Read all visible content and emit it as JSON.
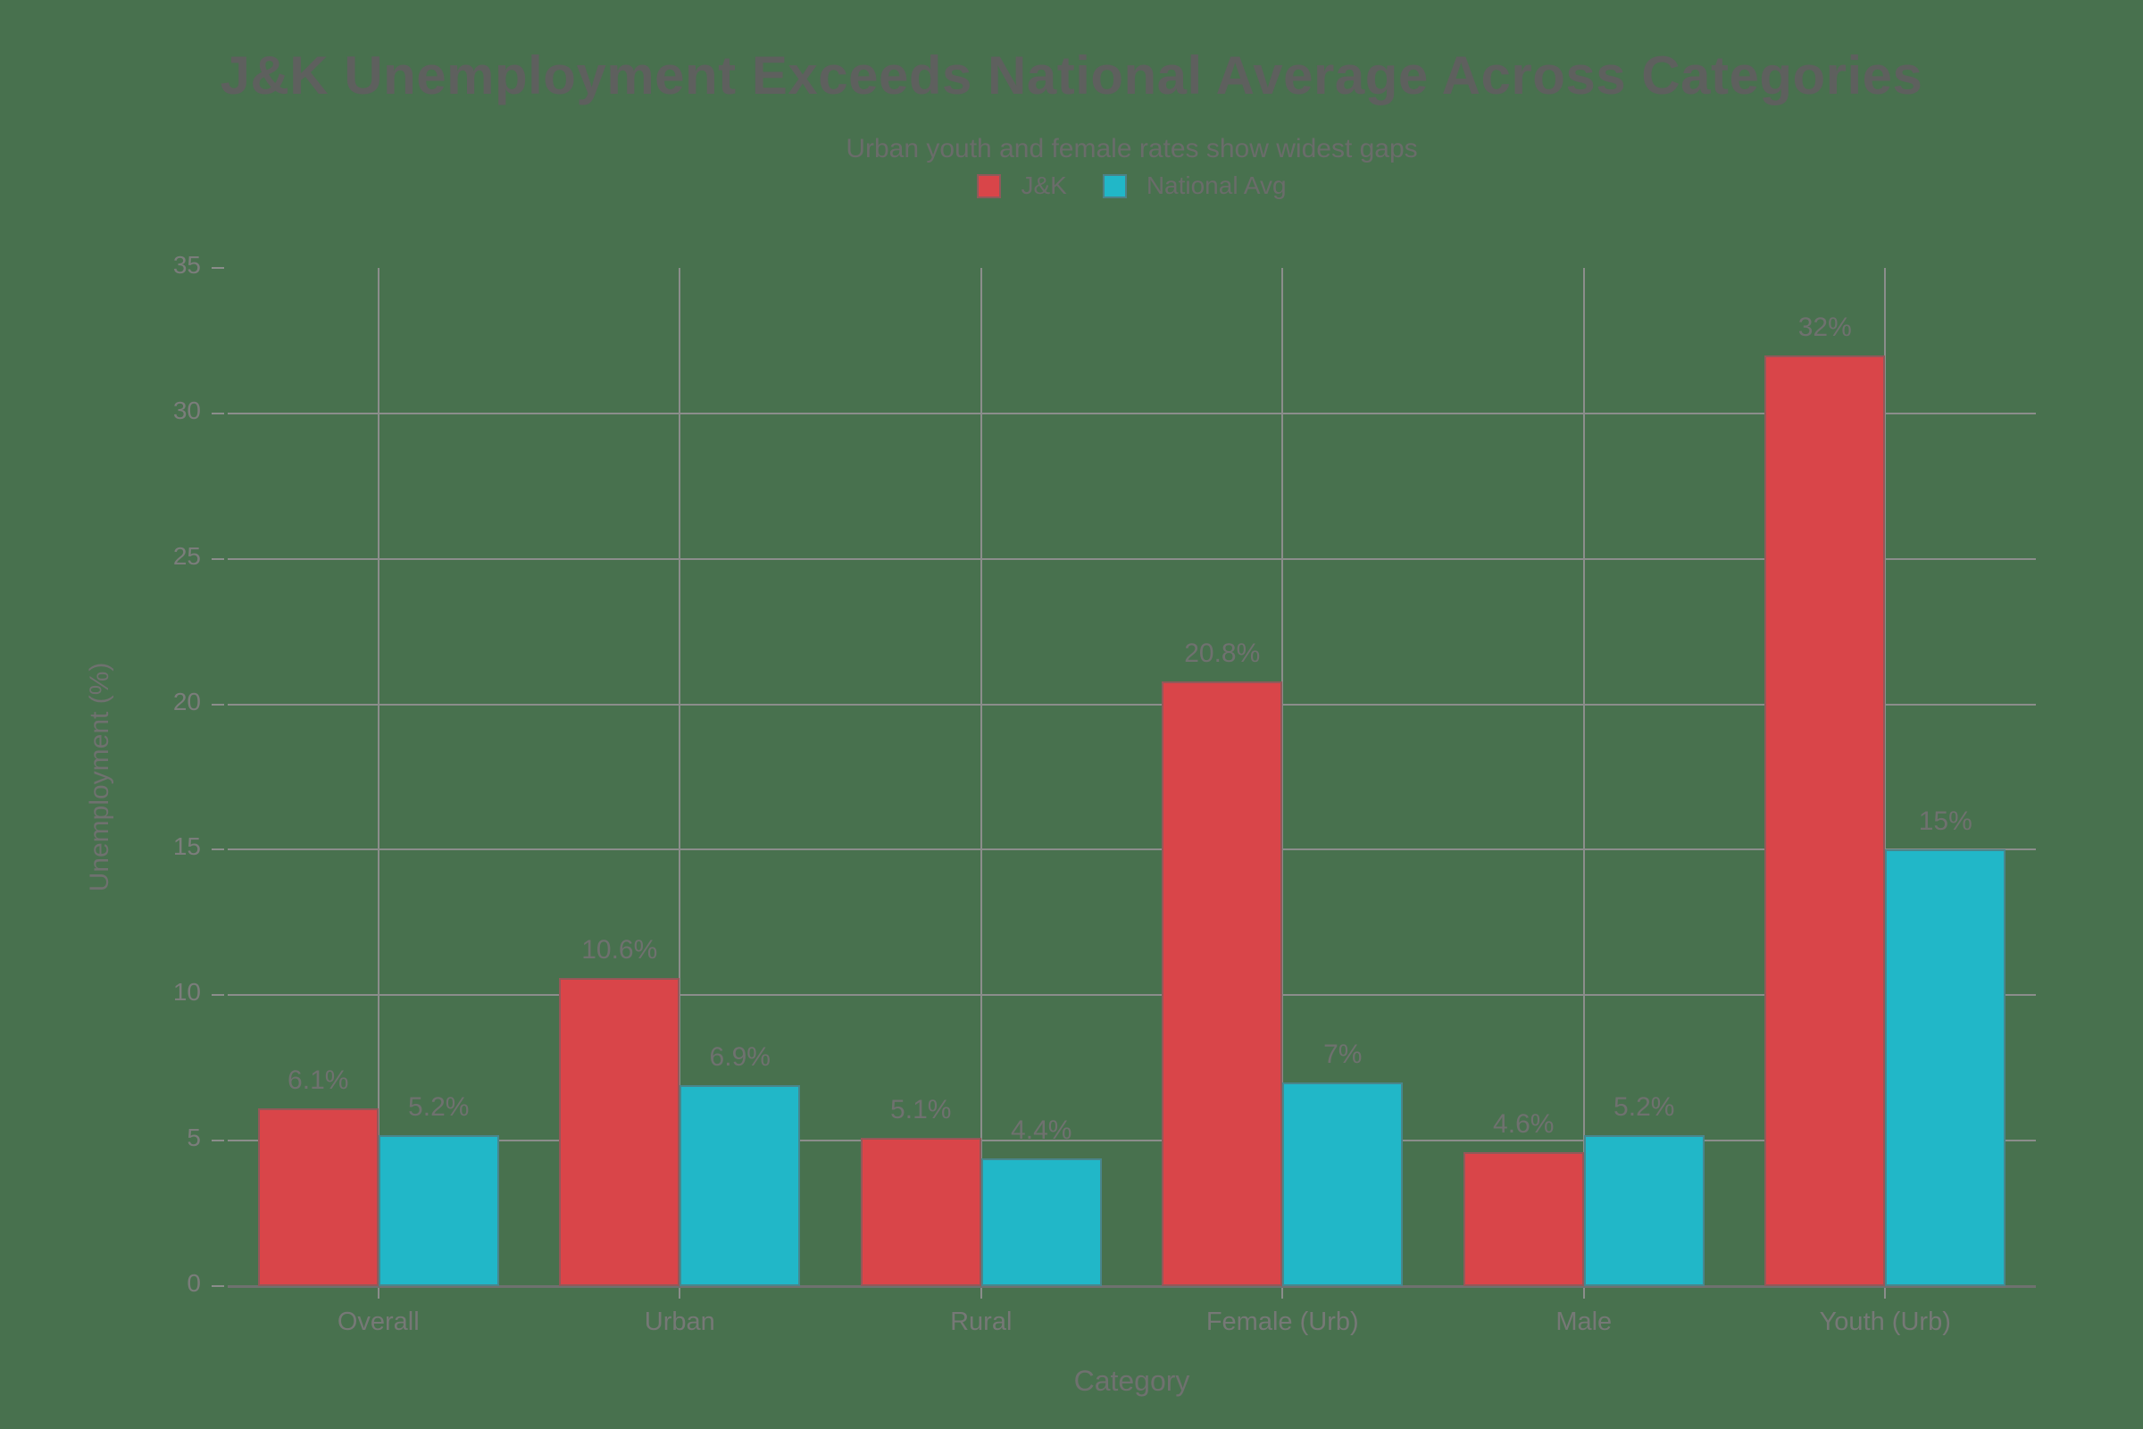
{
  "colors": {
    "background": "#48714E",
    "grid": "#8B8D8B",
    "axis_line": "#6F716F",
    "text": "#6F716F",
    "jk_red": "#D94549",
    "national_cyan": "#21B7C8"
  },
  "chart_data": {
    "type": "bar",
    "grouped": true,
    "title": "J&K Unemployment Exceeds National Average Across Categories",
    "subtitle": "Urban youth and female rates show widest gaps",
    "xlabel": "Category",
    "ylabel": "Unemployment (%)",
    "categories": [
      "Overall",
      "Urban",
      "Rural",
      "Female (Urb)",
      "Male",
      "Youth (Urb)"
    ],
    "series": [
      {
        "name": "J&K",
        "color": "#D94549",
        "values": [
          6.1,
          10.6,
          5.1,
          20.8,
          4.6,
          32
        ],
        "labels": [
          "6.1%",
          "10.6%",
          "5.1%",
          "20.8%",
          "4.6%",
          "32%"
        ]
      },
      {
        "name": "National Avg",
        "color": "#21B7C8",
        "values": [
          5.2,
          6.9,
          4.4,
          7,
          5.2,
          15
        ],
        "labels": [
          "5.2%",
          "6.9%",
          "4.4%",
          "7%",
          "5.2%",
          "15%"
        ]
      }
    ],
    "ylim": [
      0,
      35
    ],
    "yticks": [
      0,
      5,
      10,
      15,
      20,
      25,
      30,
      35
    ],
    "grid": true,
    "legend_position": "top-center"
  }
}
